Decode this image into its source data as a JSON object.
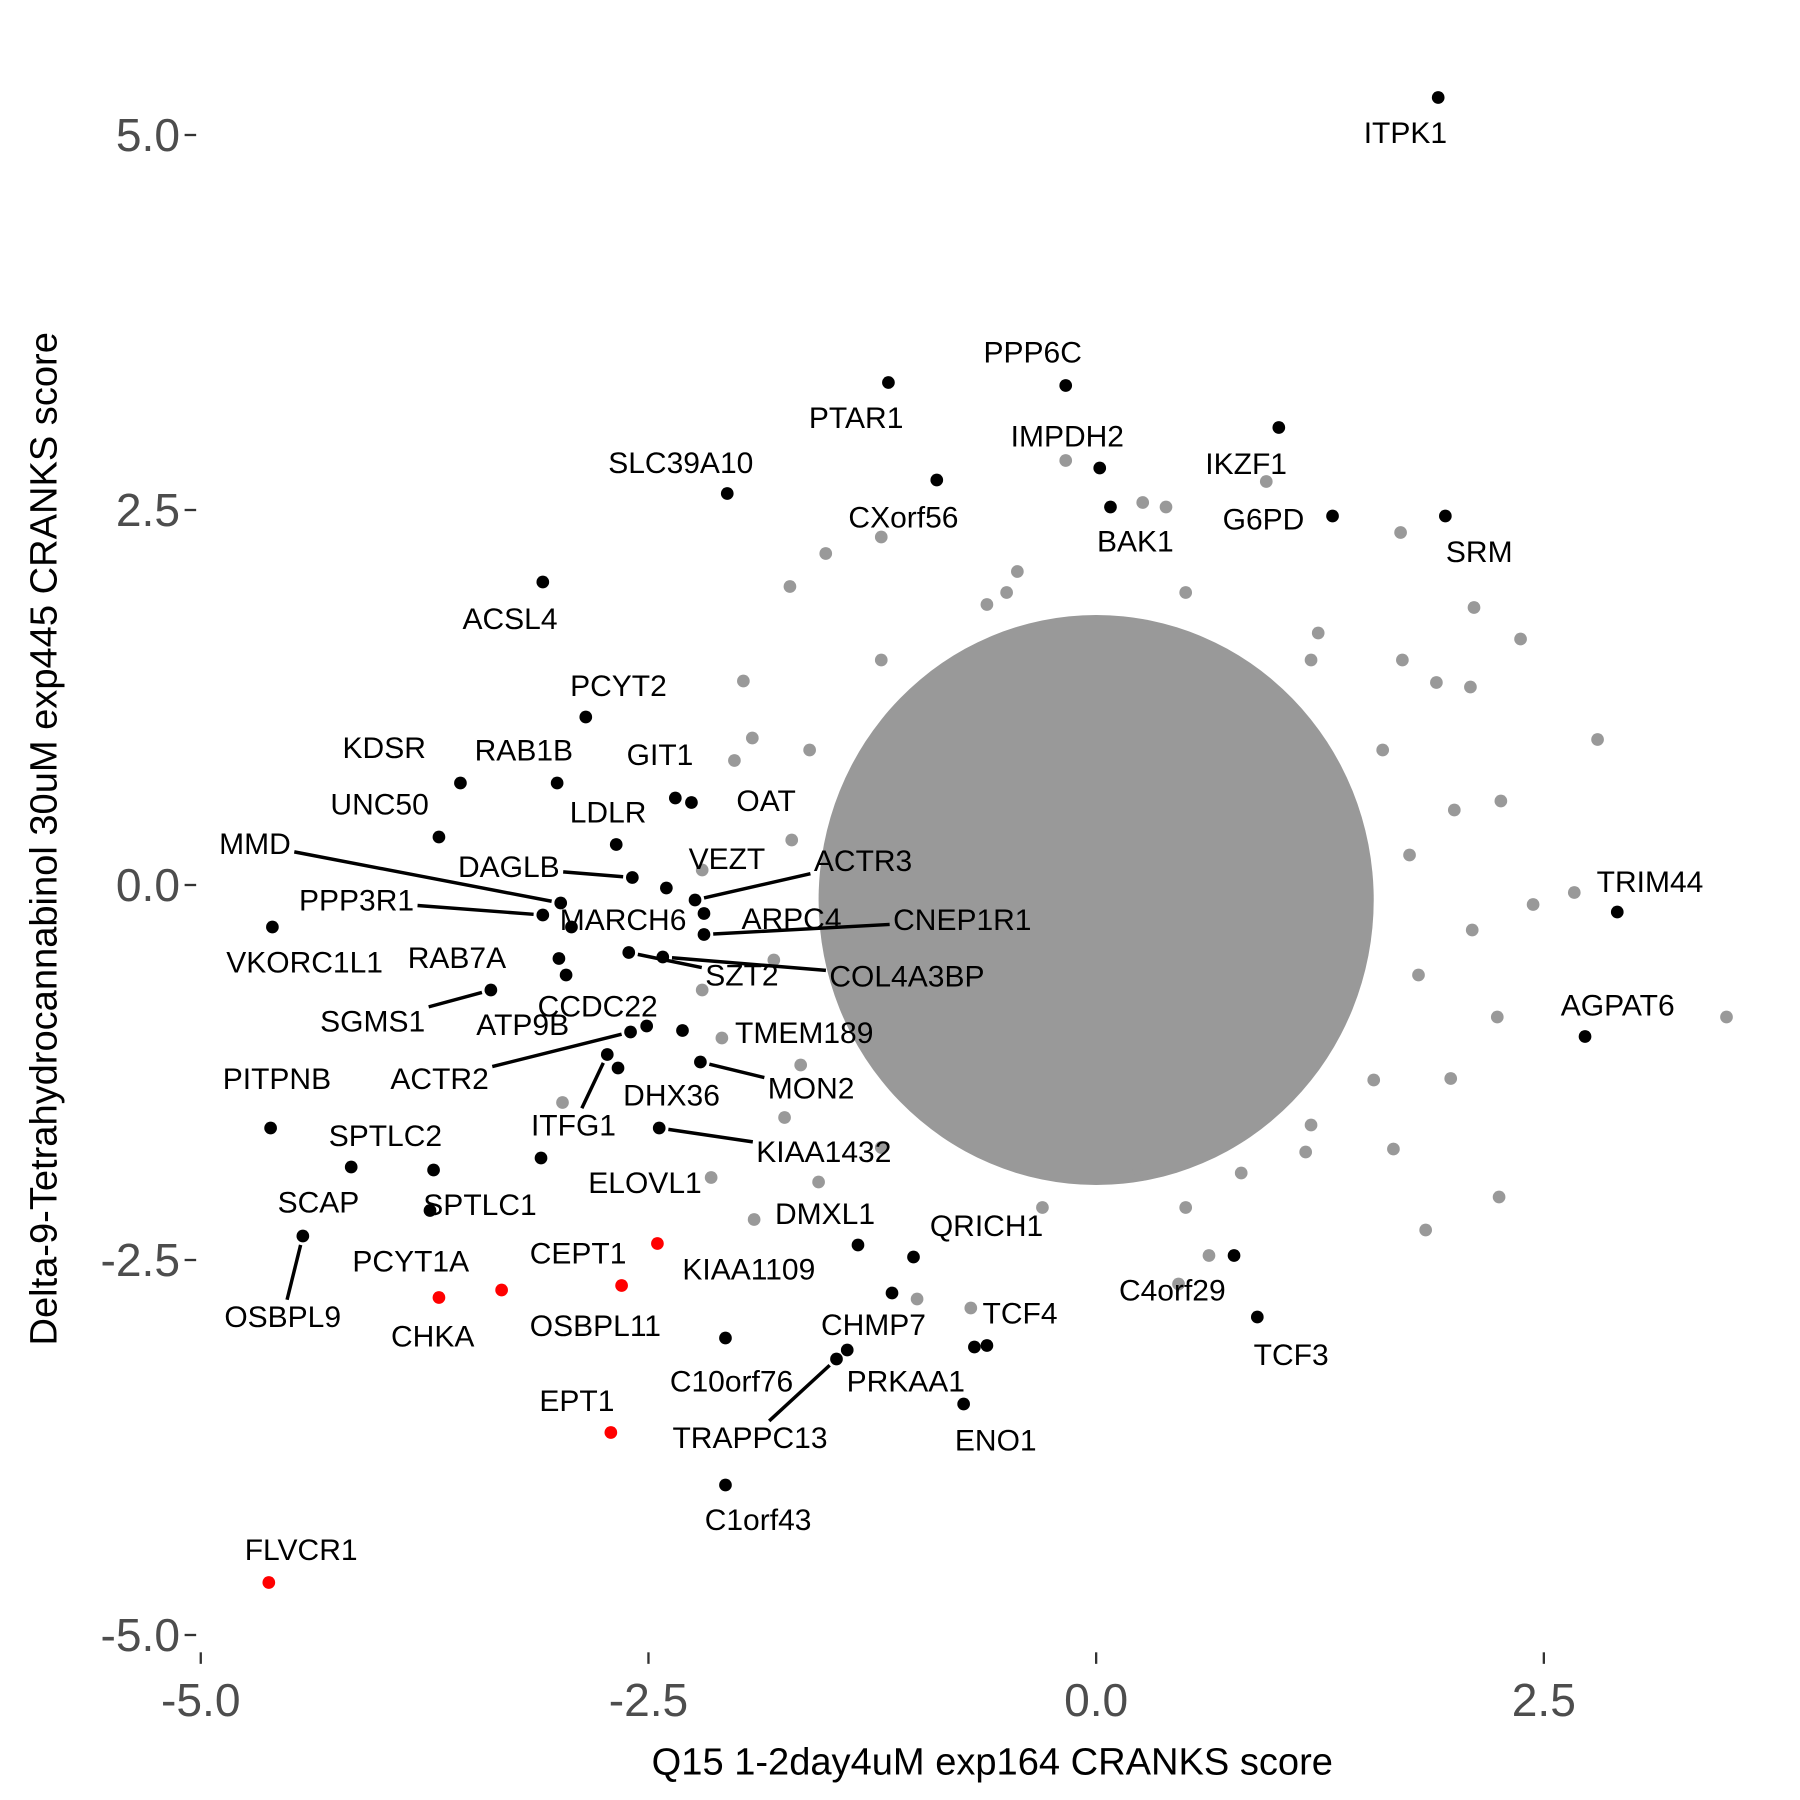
{
  "chart_data": {
    "type": "scatter",
    "title": "",
    "xlabel": "Q15 1-2day4uM exp164 CRANKS score",
    "ylabel": "Delta-9-Tetrahydrocannabinol 30uM exp445 CRANKS score",
    "xlim": [
      -5.0,
      3.6
    ],
    "ylim": [
      -5.0,
      5.3
    ],
    "xticks": [
      "-5.0",
      "-2.5",
      "0.0",
      "2.5"
    ],
    "yticks": [
      "5.0",
      "2.5",
      "0.0",
      "-2.5",
      "-5.0"
    ],
    "xtick_values": [
      -5.0,
      -2.5,
      0.0,
      2.5
    ],
    "ytick_values": [
      5.0,
      2.5,
      0.0,
      -2.5,
      -5.0
    ],
    "grid": false,
    "colors": {
      "background": "#999999",
      "labeled": "#000000",
      "highlight": "#ff0000"
    },
    "dense_core": {
      "center": [
        0.0,
        -0.1
      ],
      "x_halfwidth": 1.55,
      "y_halfwidth": 1.9
    },
    "labeled_points": [
      {
        "label": "ITPK1",
        "x": 1.91,
        "y": 5.25,
        "group": "labeled"
      },
      {
        "label": "PPP6C",
        "x": -0.17,
        "y": 3.33,
        "group": "labeled"
      },
      {
        "label": "PTAR1",
        "x": -1.16,
        "y": 3.35,
        "group": "labeled"
      },
      {
        "label": "IKZF1",
        "x": 1.02,
        "y": 3.05,
        "group": "labeled"
      },
      {
        "label": "IMPDH2",
        "x": 0.02,
        "y": 2.78,
        "group": "labeled"
      },
      {
        "label": "CXorf56",
        "x": -0.89,
        "y": 2.7,
        "group": "labeled"
      },
      {
        "label": "SLC39A10",
        "x": -2.06,
        "y": 2.61,
        "group": "labeled"
      },
      {
        "label": "BAK1",
        "x": 0.08,
        "y": 2.52,
        "group": "labeled"
      },
      {
        "label": "G6PD",
        "x": 1.32,
        "y": 2.46,
        "group": "labeled"
      },
      {
        "label": "SRM",
        "x": 1.95,
        "y": 2.46,
        "group": "labeled"
      },
      {
        "label": "ACSL4",
        "x": -3.09,
        "y": 2.02,
        "group": "labeled"
      },
      {
        "label": "PCYT2",
        "x": -2.85,
        "y": 1.12,
        "group": "labeled"
      },
      {
        "label": "KDSR",
        "x": -3.55,
        "y": 0.68,
        "group": "labeled"
      },
      {
        "label": "RAB1B",
        "x": -3.01,
        "y": 0.68,
        "group": "labeled"
      },
      {
        "label": "GIT1",
        "x": -2.35,
        "y": 0.58,
        "group": "labeled"
      },
      {
        "label": "OAT",
        "x": -2.26,
        "y": 0.55,
        "group": "labeled"
      },
      {
        "label": "UNC50",
        "x": -3.67,
        "y": 0.32,
        "group": "labeled"
      },
      {
        "label": "LDLR",
        "x": -2.68,
        "y": 0.27,
        "group": "labeled"
      },
      {
        "label": "MMD",
        "x": -2.99,
        "y": -0.12,
        "group": "labeled"
      },
      {
        "label": "DAGLB",
        "x": -2.59,
        "y": 0.05,
        "group": "labeled"
      },
      {
        "label": "VEZT",
        "x": -2.4,
        "y": -0.02,
        "group": "labeled"
      },
      {
        "label": "ACTR3",
        "x": -2.24,
        "y": -0.1,
        "group": "labeled"
      },
      {
        "label": "PPP3R1",
        "x": -3.09,
        "y": -0.2,
        "group": "labeled"
      },
      {
        "label": "MARCH6",
        "x": -2.93,
        "y": -0.28,
        "group": "labeled"
      },
      {
        "label": "ARPC4",
        "x": -2.19,
        "y": -0.19,
        "group": "labeled"
      },
      {
        "label": "CNEP1R1",
        "x": -2.19,
        "y": -0.33,
        "group": "labeled"
      },
      {
        "label": "VKORC1L1",
        "x": -4.6,
        "y": -0.28,
        "group": "labeled"
      },
      {
        "label": "RAB7A",
        "x": -3.0,
        "y": -0.49,
        "group": "labeled"
      },
      {
        "label": "SZT2",
        "x": -2.61,
        "y": -0.45,
        "group": "labeled"
      },
      {
        "label": "COL4A3BP",
        "x": -2.42,
        "y": -0.48,
        "group": "labeled"
      },
      {
        "label": "CCDC22",
        "x": -2.51,
        "y": -0.94,
        "group": "labeled"
      },
      {
        "label": "SGMS1",
        "x": -3.38,
        "y": -0.7,
        "group": "labeled"
      },
      {
        "label": "ATP9B",
        "x": -2.96,
        "y": -0.6,
        "group": "labeled"
      },
      {
        "label": "TMEM189",
        "x": -2.31,
        "y": -0.97,
        "group": "labeled"
      },
      {
        "label": "PITPNB",
        "x": -4.61,
        "y": -1.62,
        "group": "labeled"
      },
      {
        "label": "ACTR2",
        "x": -2.6,
        "y": -0.98,
        "group": "labeled"
      },
      {
        "label": "MON2",
        "x": -2.21,
        "y": -1.18,
        "group": "labeled"
      },
      {
        "label": "DHX36",
        "x": -2.67,
        "y": -1.22,
        "group": "labeled"
      },
      {
        "label": "ITFG1",
        "x": -2.73,
        "y": -1.13,
        "group": "labeled"
      },
      {
        "label": "KIAA1432",
        "x": -2.44,
        "y": -1.62,
        "group": "labeled"
      },
      {
        "label": "SPTLC2",
        "x": -4.16,
        "y": -1.88,
        "group": "labeled"
      },
      {
        "label": "ELOVL1",
        "x": -3.1,
        "y": -1.82,
        "group": "labeled"
      },
      {
        "label": "SPTLC1",
        "x": -3.7,
        "y": -1.9,
        "group": "labeled"
      },
      {
        "label": "SCAP",
        "x": -3.72,
        "y": -2.17,
        "group": "labeled"
      },
      {
        "label": "DMXL1",
        "x": -1.33,
        "y": -2.4,
        "group": "labeled"
      },
      {
        "label": "QRICH1",
        "x": -1.02,
        "y": -2.48,
        "group": "labeled"
      },
      {
        "label": "CEPT1",
        "x": -2.45,
        "y": -2.39,
        "group": "highlight"
      },
      {
        "label": "PCYT1A",
        "x": -3.32,
        "y": -2.7,
        "group": "highlight"
      },
      {
        "label": "KIAA1109",
        "x": -1.14,
        "y": -2.72,
        "group": "labeled"
      },
      {
        "label": "C4orf29",
        "x": 0.77,
        "y": -2.47,
        "group": "labeled"
      },
      {
        "label": "OSBPL9",
        "x": -4.43,
        "y": -2.34,
        "group": "labeled"
      },
      {
        "label": "OSBPL11",
        "x": -2.65,
        "y": -2.67,
        "group": "highlight"
      },
      {
        "label": "CHMP7",
        "x": -1.39,
        "y": -3.1,
        "group": "labeled"
      },
      {
        "label": "TCF4",
        "x": -0.61,
        "y": -3.07,
        "group": "labeled"
      },
      {
        "label": "CHKA",
        "x": -3.67,
        "y": -2.75,
        "group": "highlight"
      },
      {
        "label": "TCF3",
        "x": 0.9,
        "y": -2.88,
        "group": "labeled"
      },
      {
        "label": "C10orf76",
        "x": -2.07,
        "y": -3.02,
        "group": "labeled"
      },
      {
        "label": "PRKAA1",
        "x": -0.68,
        "y": -3.08,
        "group": "labeled"
      },
      {
        "label": "EPT1",
        "x": -2.71,
        "y": -3.65,
        "group": "highlight"
      },
      {
        "label": "TRAPPC13",
        "x": -1.45,
        "y": -3.16,
        "group": "labeled"
      },
      {
        "label": "ENO1",
        "x": -0.74,
        "y": -3.46,
        "group": "labeled"
      },
      {
        "label": "C1orf43",
        "x": -2.07,
        "y": -4.0,
        "group": "labeled"
      },
      {
        "label": "FLVCR1",
        "x": -4.62,
        "y": -4.65,
        "group": "highlight"
      },
      {
        "label": "TRIM44",
        "x": 2.91,
        "y": -0.18,
        "group": "labeled"
      },
      {
        "label": "AGPAT6",
        "x": 2.73,
        "y": -1.01,
        "group": "labeled"
      }
    ],
    "background_points": [
      [
        -0.17,
        2.83
      ],
      [
        0.95,
        2.69
      ],
      [
        2.8,
        0.97
      ],
      [
        2.67,
        -0.05
      ],
      [
        3.52,
        -0.88
      ],
      [
        2.37,
        1.64
      ],
      [
        2.11,
        1.85
      ],
      [
        1.7,
        2.35
      ],
      [
        2.25,
        -2.08
      ],
      [
        1.84,
        -2.3
      ],
      [
        0.63,
        -2.47
      ],
      [
        0.46,
        -2.66
      ],
      [
        -0.7,
        -2.82
      ],
      [
        -1.0,
        -2.76
      ],
      [
        -1.91,
        -2.23
      ],
      [
        -2.15,
        -1.95
      ],
      [
        -2.98,
        -1.45
      ],
      [
        -1.71,
        1.99
      ],
      [
        -1.51,
        2.21
      ],
      [
        -1.2,
        2.32
      ],
      [
        -1.97,
        1.36
      ],
      [
        -2.02,
        0.83
      ],
      [
        2.26,
        0.56
      ],
      [
        2.44,
        -0.13
      ],
      [
        1.9,
        1.35
      ],
      [
        2.09,
        1.32
      ],
      [
        1.71,
        1.5
      ],
      [
        1.24,
        1.68
      ],
      [
        1.17,
        -1.78
      ],
      [
        1.66,
        -1.76
      ],
      [
        0.81,
        -1.92
      ],
      [
        0.24,
        -1.9
      ],
      [
        -1.55,
        -1.98
      ],
      [
        -1.74,
        -1.55
      ],
      [
        -2.09,
        -1.02
      ],
      [
        -1.92,
        0.98
      ],
      [
        0.39,
        2.52
      ],
      [
        0.26,
        2.55
      ],
      [
        -0.44,
        2.09
      ],
      [
        -0.61,
        1.87
      ],
      [
        2.24,
        -0.88
      ],
      [
        1.98,
        -1.29
      ],
      [
        -1.7,
        0.3
      ],
      [
        -1.8,
        -0.5
      ],
      [
        -1.6,
        0.9
      ],
      [
        -1.65,
        -1.2
      ],
      [
        1.75,
        0.2
      ],
      [
        1.8,
        -0.6
      ],
      [
        1.6,
        0.9
      ],
      [
        1.55,
        -1.3
      ],
      [
        -0.5,
        1.95
      ],
      [
        0.5,
        1.95
      ],
      [
        -0.3,
        -2.15
      ],
      [
        0.5,
        -2.15
      ],
      [
        -1.2,
        1.5
      ],
      [
        1.2,
        1.5
      ],
      [
        -1.2,
        -1.75
      ],
      [
        1.2,
        -1.6
      ],
      [
        -2.2,
        -0.7
      ],
      [
        -2.2,
        0.1
      ],
      [
        2.1,
        -0.3
      ],
      [
        2.0,
        0.5
      ]
    ]
  }
}
